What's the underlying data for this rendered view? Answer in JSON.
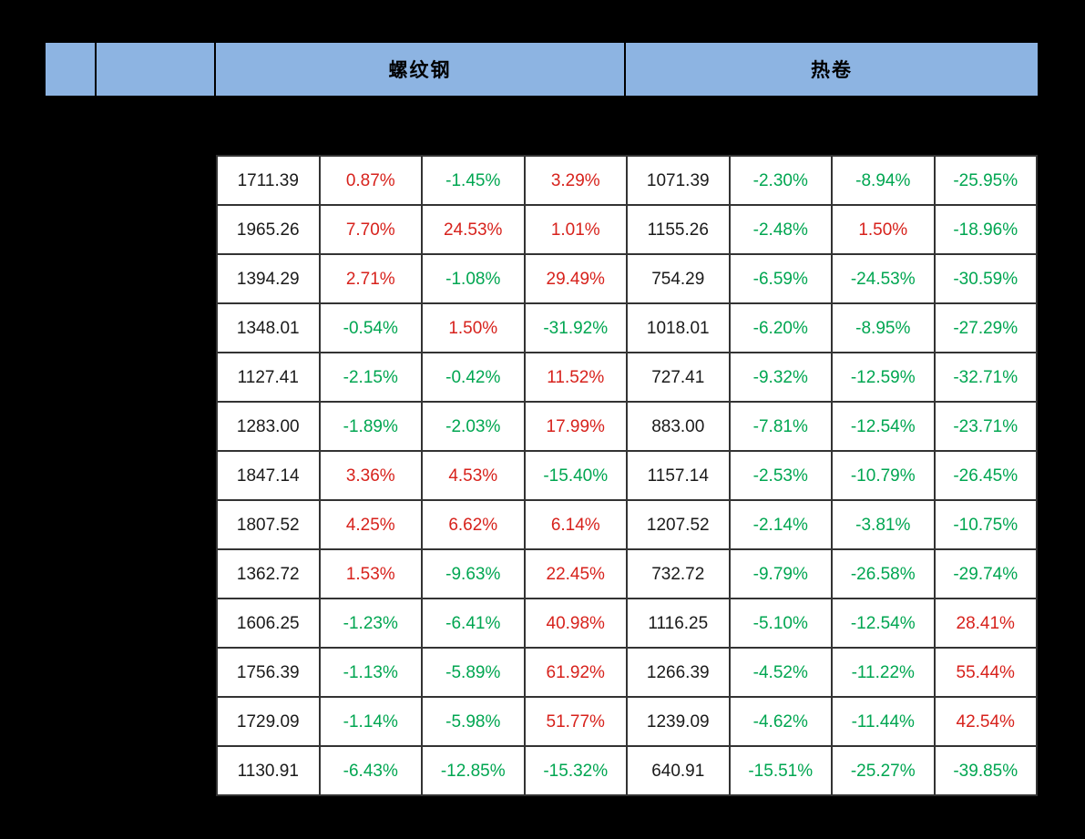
{
  "palette": {
    "background": "#000000",
    "header_band_blue": "#8db4e2",
    "grid_border": "#333333",
    "value_text": "#1a1a1a",
    "positive_red": "#d7221c",
    "negative_green": "#00a651"
  },
  "header": {
    "group1_label": "螺纹钢",
    "group2_label": "热卷"
  },
  "table": {
    "columns_per_group": 4,
    "rows": [
      [
        "1711.39",
        "0.87%",
        "-1.45%",
        "3.29%",
        "1071.39",
        "-2.30%",
        "-8.94%",
        "-25.95%"
      ],
      [
        "1965.26",
        "7.70%",
        "24.53%",
        "1.01%",
        "1155.26",
        "-2.48%",
        "1.50%",
        "-18.96%"
      ],
      [
        "1394.29",
        "2.71%",
        "-1.08%",
        "29.49%",
        "754.29",
        "-6.59%",
        "-24.53%",
        "-30.59%"
      ],
      [
        "1348.01",
        "-0.54%",
        "1.50%",
        "-31.92%",
        "1018.01",
        "-6.20%",
        "-8.95%",
        "-27.29%"
      ],
      [
        "1127.41",
        "-2.15%",
        "-0.42%",
        "11.52%",
        "727.41",
        "-9.32%",
        "-12.59%",
        "-32.71%"
      ],
      [
        "1283.00",
        "-1.89%",
        "-2.03%",
        "17.99%",
        "883.00",
        "-7.81%",
        "-12.54%",
        "-23.71%"
      ],
      [
        "1847.14",
        "3.36%",
        "4.53%",
        "-15.40%",
        "1157.14",
        "-2.53%",
        "-10.79%",
        "-26.45%"
      ],
      [
        "1807.52",
        "4.25%",
        "6.62%",
        "6.14%",
        "1207.52",
        "-2.14%",
        "-3.81%",
        "-10.75%"
      ],
      [
        "1362.72",
        "1.53%",
        "-9.63%",
        "22.45%",
        "732.72",
        "-9.79%",
        "-26.58%",
        "-29.74%"
      ],
      [
        "1606.25",
        "-1.23%",
        "-6.41%",
        "40.98%",
        "1116.25",
        "-5.10%",
        "-12.54%",
        "28.41%"
      ],
      [
        "1756.39",
        "-1.13%",
        "-5.89%",
        "61.92%",
        "1266.39",
        "-4.52%",
        "-11.22%",
        "55.44%"
      ],
      [
        "1729.09",
        "-1.14%",
        "-5.98%",
        "51.77%",
        "1239.09",
        "-4.62%",
        "-11.44%",
        "42.54%"
      ],
      [
        "1130.91",
        "-6.43%",
        "-12.85%",
        "-15.32%",
        "640.91",
        "-15.51%",
        "-25.27%",
        "-39.85%"
      ]
    ]
  }
}
